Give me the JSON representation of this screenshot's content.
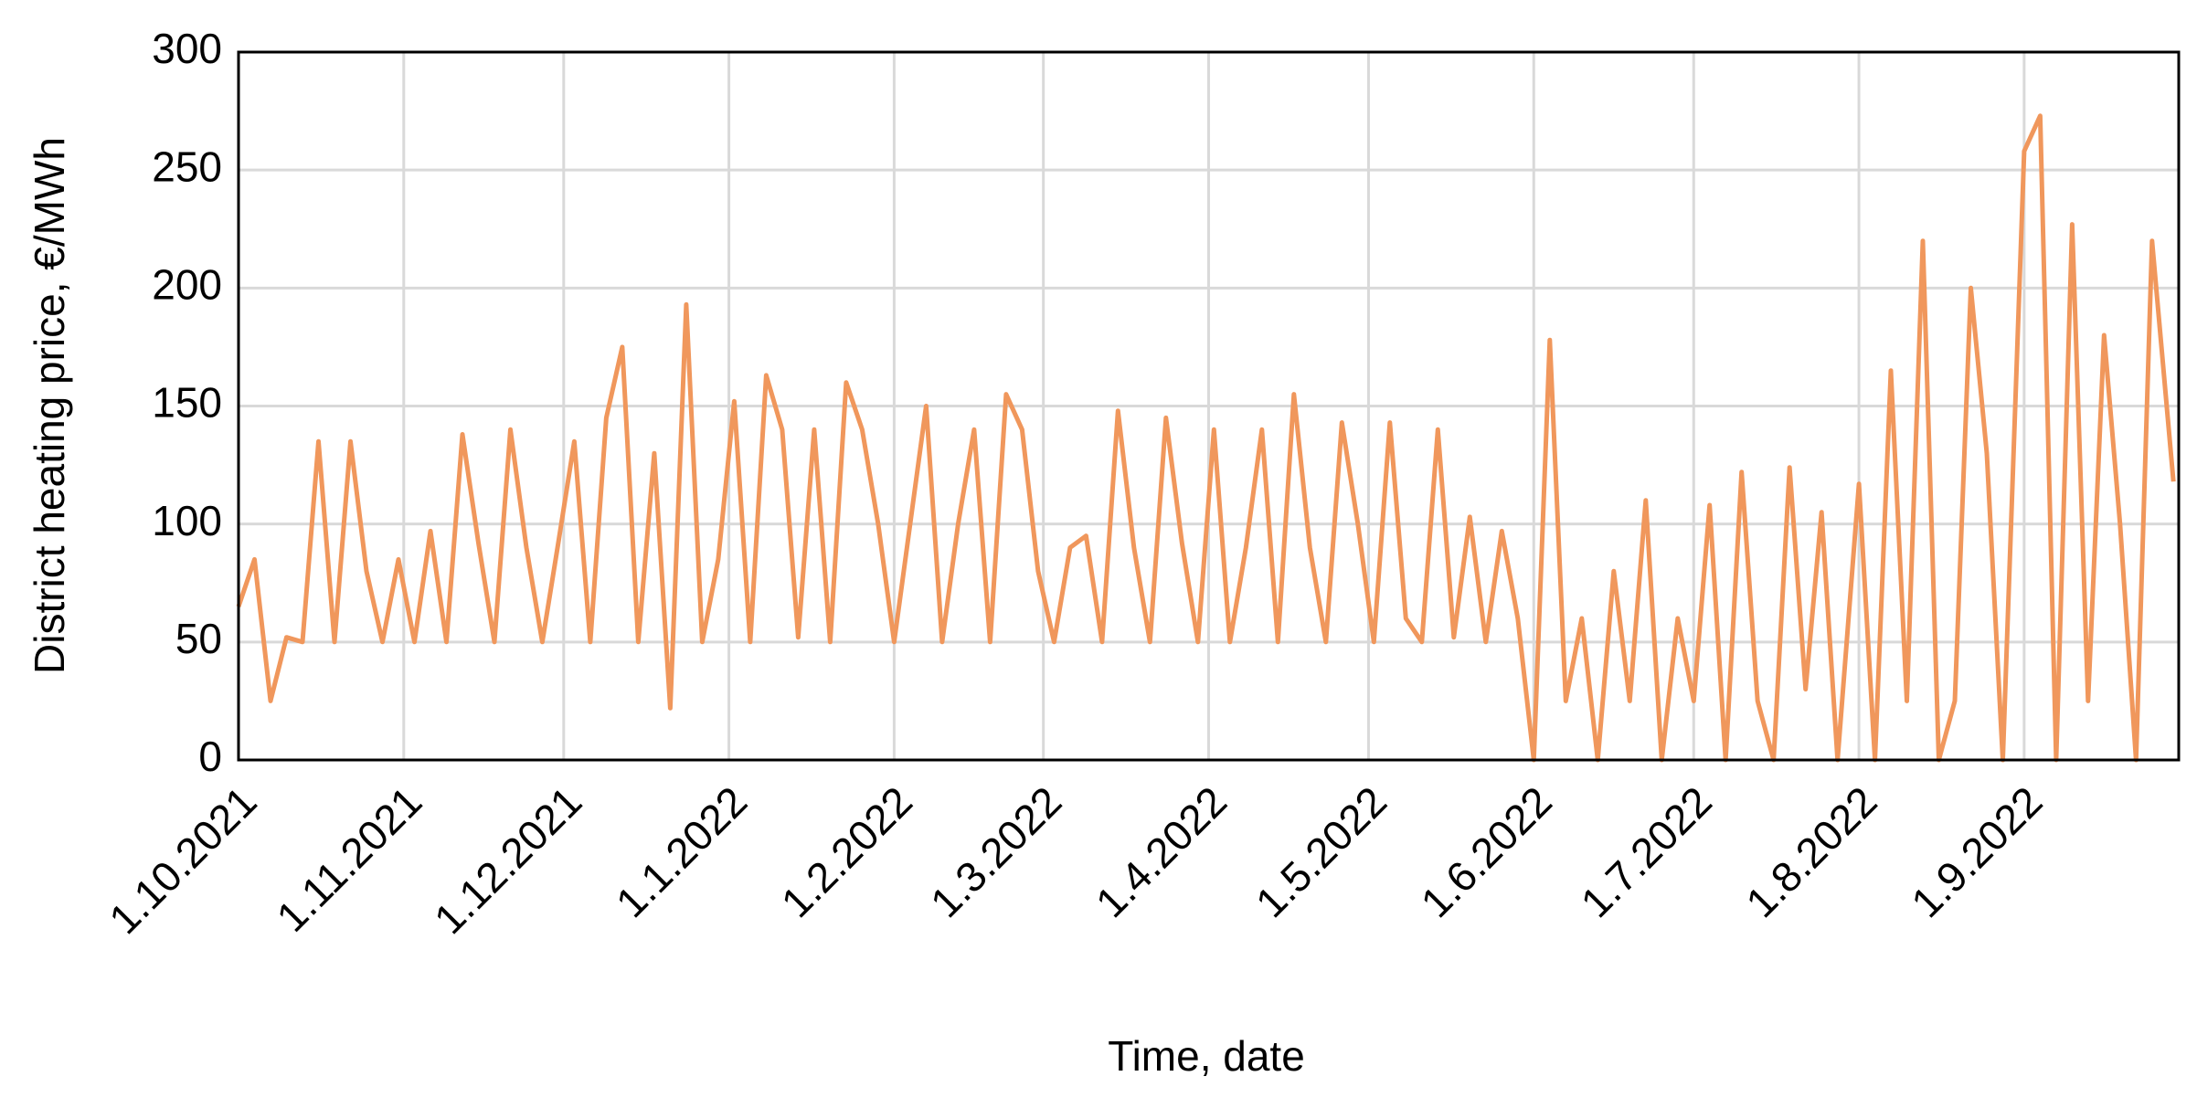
{
  "chart_data": {
    "type": "line",
    "x_label": "Time, date",
    "y_label": "District heating price, €/MWh",
    "x": [
      "2021-10-01",
      "2021-10-04",
      "2021-10-07",
      "2021-10-10",
      "2021-10-13",
      "2021-10-16",
      "2021-10-19",
      "2021-10-22",
      "2021-10-25",
      "2021-10-28",
      "2021-10-31",
      "2021-11-03",
      "2021-11-06",
      "2021-11-09",
      "2021-11-12",
      "2021-11-15",
      "2021-11-18",
      "2021-11-21",
      "2021-11-24",
      "2021-11-27",
      "2021-11-30",
      "2021-12-03",
      "2021-12-06",
      "2021-12-09",
      "2021-12-12",
      "2021-12-15",
      "2021-12-18",
      "2021-12-21",
      "2021-12-24",
      "2021-12-27",
      "2021-12-30",
      "2022-01-02",
      "2022-01-05",
      "2022-01-08",
      "2022-01-11",
      "2022-01-14",
      "2022-01-17",
      "2022-01-20",
      "2022-01-23",
      "2022-01-26",
      "2022-01-29",
      "2022-02-01",
      "2022-02-04",
      "2022-02-07",
      "2022-02-10",
      "2022-02-13",
      "2022-02-16",
      "2022-02-19",
      "2022-02-22",
      "2022-02-25",
      "2022-02-28",
      "2022-03-03",
      "2022-03-06",
      "2022-03-09",
      "2022-03-12",
      "2022-03-15",
      "2022-03-18",
      "2022-03-21",
      "2022-03-24",
      "2022-03-27",
      "2022-03-30",
      "2022-04-02",
      "2022-04-05",
      "2022-04-08",
      "2022-04-11",
      "2022-04-14",
      "2022-04-17",
      "2022-04-20",
      "2022-04-23",
      "2022-04-26",
      "2022-04-29",
      "2022-05-02",
      "2022-05-05",
      "2022-05-08",
      "2022-05-11",
      "2022-05-14",
      "2022-05-17",
      "2022-05-20",
      "2022-05-23",
      "2022-05-26",
      "2022-05-29",
      "2022-06-01",
      "2022-06-04",
      "2022-06-07",
      "2022-06-10",
      "2022-06-13",
      "2022-06-16",
      "2022-06-19",
      "2022-06-22",
      "2022-06-25",
      "2022-06-28",
      "2022-07-01",
      "2022-07-04",
      "2022-07-07",
      "2022-07-10",
      "2022-07-13",
      "2022-07-16",
      "2022-07-19",
      "2022-07-22",
      "2022-07-25",
      "2022-07-28",
      "2022-08-01",
      "2022-08-04",
      "2022-08-07",
      "2022-08-10",
      "2022-08-13",
      "2022-08-16",
      "2022-08-19",
      "2022-08-22",
      "2022-08-25",
      "2022-08-28",
      "2022-09-01",
      "2022-09-04",
      "2022-09-07",
      "2022-09-10",
      "2022-09-13",
      "2022-09-16",
      "2022-09-19",
      "2022-09-22",
      "2022-09-25",
      "2022-09-29"
    ],
    "series": [
      {
        "name": "District heating price",
        "color": "#f0975c",
        "values": [
          65,
          85,
          25,
          52,
          50,
          135,
          50,
          135,
          80,
          50,
          85,
          50,
          97,
          50,
          138,
          92,
          50,
          140,
          90,
          50,
          92,
          135,
          50,
          145,
          175,
          50,
          130,
          22,
          193,
          50,
          85,
          152,
          50,
          163,
          140,
          52,
          140,
          50,
          160,
          140,
          100,
          50,
          100,
          150,
          50,
          100,
          140,
          50,
          155,
          140,
          80,
          50,
          90,
          95,
          50,
          148,
          90,
          50,
          145,
          92,
          50,
          140,
          50,
          90,
          140,
          50,
          155,
          90,
          50,
          143,
          100,
          50,
          143,
          60,
          50,
          140,
          52,
          103,
          50,
          97,
          60,
          0,
          178,
          25,
          60,
          0,
          80,
          25,
          110,
          0,
          60,
          25,
          108,
          0,
          122,
          25,
          0,
          124,
          30,
          105,
          0,
          117,
          0,
          165,
          25,
          220,
          0,
          25,
          200,
          130,
          0,
          258,
          273,
          0,
          227,
          25,
          180,
          100,
          0,
          220,
          118
        ]
      }
    ],
    "xlim": [
      "2021-10-01",
      "2022-09-30"
    ],
    "xticks": [
      {
        "value": "2021-10-01",
        "label": "1.10.2021"
      },
      {
        "value": "2021-11-01",
        "label": "1.11.2021"
      },
      {
        "value": "2021-12-01",
        "label": "1.12.2021"
      },
      {
        "value": "2022-01-01",
        "label": "1.1.2022"
      },
      {
        "value": "2022-02-01",
        "label": "1.2.2022"
      },
      {
        "value": "2022-03-01",
        "label": "1.3.2022"
      },
      {
        "value": "2022-04-01",
        "label": "1.4.2022"
      },
      {
        "value": "2022-05-01",
        "label": "1.5.2022"
      },
      {
        "value": "2022-06-01",
        "label": "1.6.2022"
      },
      {
        "value": "2022-07-01",
        "label": "1.7.2022"
      },
      {
        "value": "2022-08-01",
        "label": "1.8.2022"
      },
      {
        "value": "2022-09-01",
        "label": "1.9.2022"
      }
    ],
    "ylim": [
      0,
      300
    ],
    "yticks": [
      0,
      50,
      100,
      150,
      200,
      250,
      300
    ],
    "grid": true
  }
}
